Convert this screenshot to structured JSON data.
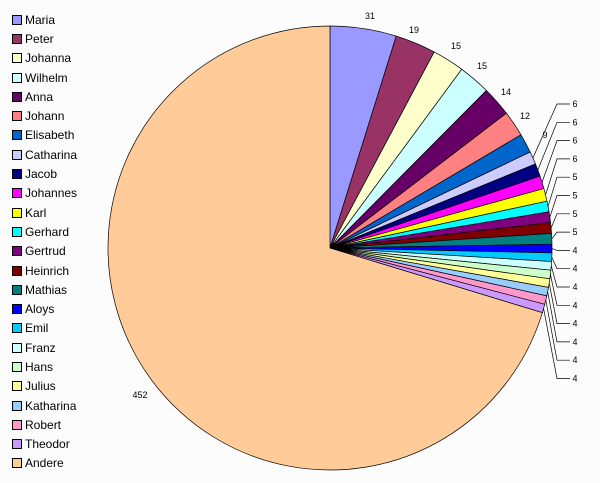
{
  "chart_data": {
    "type": "pie",
    "start_angle": "top, clockwise",
    "legend_position": "left",
    "slices": [
      {
        "label": "Maria",
        "value": 31,
        "color": "#9999ff"
      },
      {
        "label": "Peter",
        "value": 19,
        "color": "#993366"
      },
      {
        "label": "Johanna",
        "value": 15,
        "color": "#ffffcc"
      },
      {
        "label": "Wilhelm",
        "value": 15,
        "color": "#ccffff"
      },
      {
        "label": "Anna",
        "value": 14,
        "color": "#660066"
      },
      {
        "label": "Johann",
        "value": 12,
        "color": "#ff8080"
      },
      {
        "label": "Elisabeth",
        "value": 9,
        "color": "#0066cc"
      },
      {
        "label": "Catharina",
        "value": 6,
        "color": "#ccccff"
      },
      {
        "label": "Jacob",
        "value": 6,
        "color": "#000080"
      },
      {
        "label": "Johannes",
        "value": 6,
        "color": "#ff00ff"
      },
      {
        "label": "Karl",
        "value": 6,
        "color": "#ffff00"
      },
      {
        "label": "Gerhard",
        "value": 5,
        "color": "#00ffff"
      },
      {
        "label": "Gertrud",
        "value": 5,
        "color": "#800080"
      },
      {
        "label": "Heinrich",
        "value": 5,
        "color": "#800000"
      },
      {
        "label": "Mathias",
        "value": 5,
        "color": "#008080"
      },
      {
        "label": "Aloys",
        "value": 4,
        "color": "#0000ff"
      },
      {
        "label": "Emil",
        "value": 4,
        "color": "#00ccff"
      },
      {
        "label": "Franz",
        "value": 4,
        "color": "#ccffff"
      },
      {
        "label": "Hans",
        "value": 4,
        "color": "#ccffcc"
      },
      {
        "label": "Julius",
        "value": 4,
        "color": "#ffff99"
      },
      {
        "label": "Katharina",
        "value": 4,
        "color": "#99ccff"
      },
      {
        "label": "Robert",
        "value": 4,
        "color": "#ff99cc"
      },
      {
        "label": "Theodor",
        "value": 4,
        "color": "#cc99ff"
      },
      {
        "label": "Andere",
        "value": 452,
        "color": "#ffcc99"
      }
    ]
  }
}
